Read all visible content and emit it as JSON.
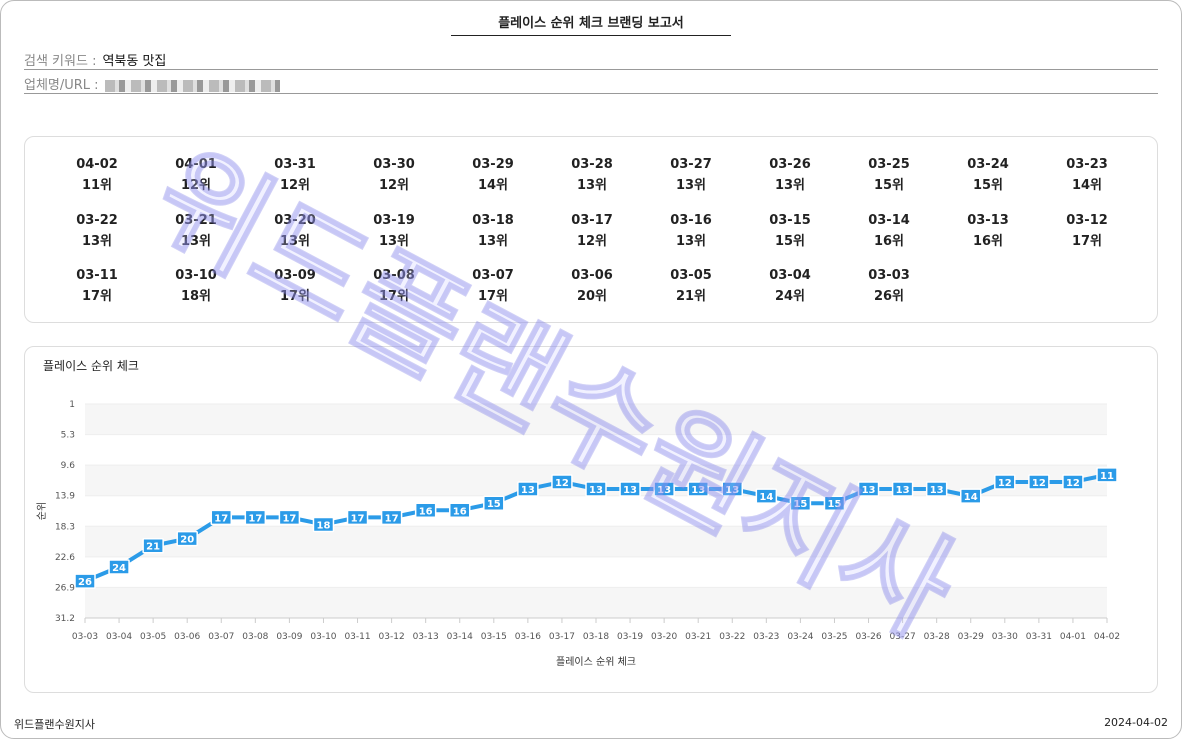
{
  "title": "플레이스 순위 체크 브랜딩 보고서",
  "keyword_label": "검색 키워드 :",
  "keyword": "역북동 맛집",
  "business_label": "업체명/URL :",
  "ranks": [
    {
      "date": "04-02",
      "rank": "11위"
    },
    {
      "date": "04-01",
      "rank": "12위"
    },
    {
      "date": "03-31",
      "rank": "12위"
    },
    {
      "date": "03-30",
      "rank": "12위"
    },
    {
      "date": "03-29",
      "rank": "14위"
    },
    {
      "date": "03-28",
      "rank": "13위"
    },
    {
      "date": "03-27",
      "rank": "13위"
    },
    {
      "date": "03-26",
      "rank": "13위"
    },
    {
      "date": "03-25",
      "rank": "15위"
    },
    {
      "date": "03-24",
      "rank": "15위"
    },
    {
      "date": "03-23",
      "rank": "14위"
    },
    {
      "date": "03-22",
      "rank": "13위"
    },
    {
      "date": "03-21",
      "rank": "13위"
    },
    {
      "date": "03-20",
      "rank": "13위"
    },
    {
      "date": "03-19",
      "rank": "13위"
    },
    {
      "date": "03-18",
      "rank": "13위"
    },
    {
      "date": "03-17",
      "rank": "12위"
    },
    {
      "date": "03-16",
      "rank": "13위"
    },
    {
      "date": "03-15",
      "rank": "15위"
    },
    {
      "date": "03-14",
      "rank": "16위"
    },
    {
      "date": "03-13",
      "rank": "16위"
    },
    {
      "date": "03-12",
      "rank": "17위"
    },
    {
      "date": "03-11",
      "rank": "17위"
    },
    {
      "date": "03-10",
      "rank": "18위"
    },
    {
      "date": "03-09",
      "rank": "17위"
    },
    {
      "date": "03-08",
      "rank": "17위"
    },
    {
      "date": "03-07",
      "rank": "17위"
    },
    {
      "date": "03-06",
      "rank": "20위"
    },
    {
      "date": "03-05",
      "rank": "21위"
    },
    {
      "date": "03-04",
      "rank": "24위"
    },
    {
      "date": "03-03",
      "rank": "26위"
    }
  ],
  "chart_data": {
    "type": "line",
    "title": "플레이스 순위 체크",
    "xlabel": "플레이스 순위 체크",
    "ylabel": "순위",
    "ylim": [
      1,
      31.2
    ],
    "y_reversed": true,
    "yticks": [
      "1",
      "5.3",
      "9.6",
      "13.9",
      "18.3",
      "22.6",
      "26.9",
      "31.2"
    ],
    "x": [
      "03-03",
      "03-04",
      "03-05",
      "03-06",
      "03-07",
      "03-08",
      "03-09",
      "03-10",
      "03-11",
      "03-12",
      "03-13",
      "03-14",
      "03-15",
      "03-16",
      "03-17",
      "03-18",
      "03-19",
      "03-20",
      "03-21",
      "03-22",
      "03-23",
      "03-24",
      "03-25",
      "03-26",
      "03-27",
      "03-28",
      "03-29",
      "03-30",
      "03-31",
      "04-01",
      "04-02"
    ],
    "series": [
      {
        "name": "순위",
        "color": "#2b9be8",
        "values": [
          26,
          24,
          21,
          20,
          17,
          17,
          17,
          18,
          17,
          17,
          16,
          16,
          15,
          13,
          12,
          13,
          13,
          13,
          13,
          13,
          14,
          15,
          15,
          13,
          13,
          13,
          14,
          12,
          12,
          12,
          11
        ]
      }
    ]
  },
  "footer_left": "위드플랜수원지사",
  "footer_right": "2024-04-02",
  "watermark": "위드플랜수원지사"
}
